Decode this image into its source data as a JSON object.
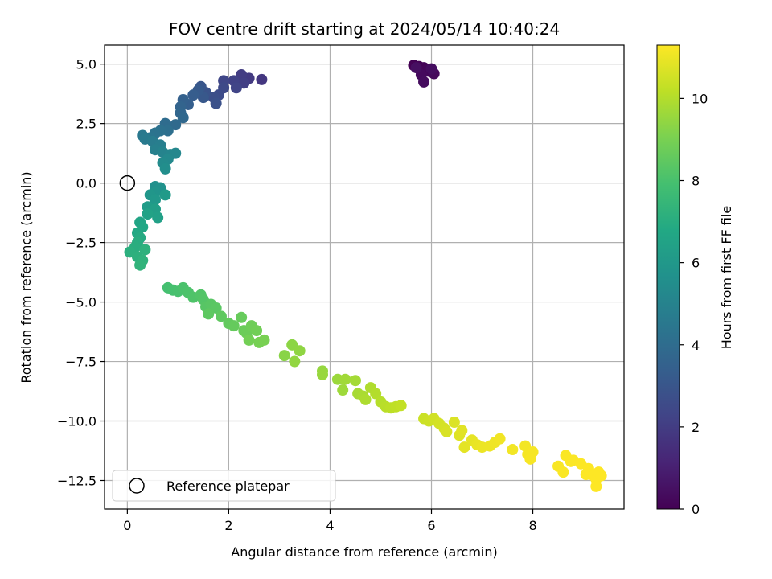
{
  "chart_data": {
    "type": "scatter",
    "title": "FOV centre drift starting at 2024/05/14 10:40:24",
    "xlabel": "Angular distance from reference (arcmin)",
    "ylabel": "Rotation from reference (arcmin)",
    "xlim": [
      -0.45,
      9.8
    ],
    "ylim": [
      -13.7,
      5.8
    ],
    "xticks": [
      0,
      2,
      4,
      6,
      8
    ],
    "xtick_labels": [
      "0",
      "2",
      "4",
      "6",
      "8"
    ],
    "yticks": [
      5.0,
      2.5,
      0.0,
      -2.5,
      -5.0,
      -7.5,
      -10.0,
      -12.5
    ],
    "ytick_labels": [
      "5.0",
      "2.5",
      "0.0",
      "−2.5",
      "−5.0",
      "−7.5",
      "−10.0",
      "−12.5"
    ],
    "grid": true,
    "legend": {
      "position": "lower-left",
      "entries": [
        "Reference platepar"
      ]
    },
    "reference_point": {
      "x": 0,
      "y": 0
    },
    "colorbar": {
      "label": "Hours from first FF file",
      "range": [
        0,
        11.3
      ],
      "ticks": [
        0,
        2,
        4,
        6,
        8,
        10
      ],
      "tick_labels": [
        "0",
        "2",
        "4",
        "6",
        "8",
        "10"
      ],
      "colormap": "viridis"
    },
    "points": [
      [
        5.65,
        4.95,
        0.0
      ],
      [
        5.75,
        4.9,
        0.05
      ],
      [
        5.85,
        4.85,
        0.1
      ],
      [
        5.9,
        4.75,
        0.15
      ],
      [
        5.95,
        4.7,
        0.2
      ],
      [
        6.05,
        4.6,
        0.25
      ],
      [
        5.8,
        4.55,
        0.3
      ],
      [
        5.85,
        4.25,
        0.35
      ],
      [
        6.0,
        4.8,
        0.4
      ],
      [
        5.7,
        4.85,
        0.45
      ],
      [
        2.65,
        4.35,
        1.8
      ],
      [
        2.4,
        4.4,
        1.9
      ],
      [
        2.25,
        4.55,
        2.0
      ],
      [
        2.3,
        4.2,
        2.1
      ],
      [
        2.1,
        4.3,
        2.2
      ],
      [
        2.15,
        4.0,
        2.3
      ],
      [
        1.9,
        4.3,
        2.4
      ],
      [
        1.9,
        4.0,
        2.5
      ],
      [
        1.8,
        3.7,
        2.6
      ],
      [
        1.7,
        3.6,
        2.7
      ],
      [
        1.75,
        3.35,
        2.8
      ],
      [
        1.55,
        3.8,
        2.9
      ],
      [
        1.45,
        4.05,
        3.0
      ],
      [
        1.5,
        3.6,
        3.1
      ],
      [
        1.4,
        3.9,
        3.2
      ],
      [
        1.3,
        3.7,
        3.3
      ],
      [
        1.2,
        3.3,
        3.4
      ],
      [
        1.1,
        3.5,
        3.5
      ],
      [
        1.05,
        3.2,
        3.6
      ],
      [
        1.05,
        2.95,
        3.7
      ],
      [
        1.1,
        2.75,
        3.8
      ],
      [
        0.95,
        2.45,
        3.9
      ],
      [
        0.75,
        2.5,
        4.0
      ],
      [
        0.8,
        2.2,
        4.1
      ],
      [
        0.65,
        2.2,
        4.2
      ],
      [
        0.55,
        2.1,
        4.3
      ],
      [
        0.45,
        1.9,
        4.4
      ],
      [
        0.3,
        2.0,
        4.5
      ],
      [
        0.35,
        1.85,
        4.6
      ],
      [
        0.5,
        1.75,
        4.7
      ],
      [
        0.65,
        1.6,
        4.8
      ],
      [
        0.55,
        1.4,
        4.9
      ],
      [
        0.7,
        1.3,
        5.0
      ],
      [
        0.85,
        1.2,
        5.1
      ],
      [
        0.95,
        1.25,
        5.2
      ],
      [
        0.8,
        1.0,
        5.3
      ],
      [
        0.7,
        0.85,
        5.4
      ],
      [
        0.75,
        0.6,
        5.5
      ],
      [
        0.55,
        -0.15,
        5.6
      ],
      [
        0.65,
        -0.2,
        5.7
      ],
      [
        0.55,
        -0.4,
        5.8
      ],
      [
        0.45,
        -0.5,
        5.9
      ],
      [
        0.55,
        -0.7,
        6.0
      ],
      [
        0.75,
        -0.5,
        6.1
      ],
      [
        0.4,
        -1.0,
        6.2
      ],
      [
        0.55,
        -1.1,
        6.3
      ],
      [
        0.6,
        -1.45,
        6.4
      ],
      [
        0.4,
        -1.3,
        6.5
      ],
      [
        0.25,
        -1.65,
        6.6
      ],
      [
        0.3,
        -1.85,
        6.7
      ],
      [
        0.2,
        -2.1,
        6.8
      ],
      [
        0.25,
        -2.3,
        6.9
      ],
      [
        0.2,
        -2.5,
        7.0
      ],
      [
        0.15,
        -2.7,
        7.05
      ],
      [
        0.05,
        -2.9,
        7.1
      ],
      [
        0.2,
        -3.1,
        7.15
      ],
      [
        0.35,
        -2.8,
        7.2
      ],
      [
        0.3,
        -3.25,
        7.25
      ],
      [
        0.25,
        -3.45,
        7.3
      ],
      [
        0.8,
        -4.4,
        7.9
      ],
      [
        0.9,
        -4.5,
        7.95
      ],
      [
        1.0,
        -4.55,
        8.0
      ],
      [
        1.1,
        -4.4,
        8.05
      ],
      [
        1.2,
        -4.6,
        8.1
      ],
      [
        1.3,
        -4.8,
        8.15
      ],
      [
        1.45,
        -4.7,
        8.2
      ],
      [
        1.5,
        -4.9,
        8.25
      ],
      [
        1.55,
        -5.2,
        8.3
      ],
      [
        1.65,
        -5.1,
        8.35
      ],
      [
        1.75,
        -5.25,
        8.4
      ],
      [
        1.6,
        -5.5,
        8.45
      ],
      [
        1.85,
        -5.6,
        8.5
      ],
      [
        2.0,
        -5.9,
        8.55
      ],
      [
        2.1,
        -6.0,
        8.6
      ],
      [
        2.25,
        -5.65,
        8.65
      ],
      [
        2.3,
        -6.2,
        8.7
      ],
      [
        2.35,
        -6.3,
        8.75
      ],
      [
        2.45,
        -6.0,
        8.8
      ],
      [
        2.55,
        -6.2,
        8.85
      ],
      [
        2.4,
        -6.6,
        8.9
      ],
      [
        2.6,
        -6.7,
        8.95
      ],
      [
        2.7,
        -6.6,
        9.0
      ],
      [
        3.1,
        -7.25,
        9.3
      ],
      [
        3.25,
        -6.8,
        9.35
      ],
      [
        3.4,
        -7.05,
        9.4
      ],
      [
        3.3,
        -7.5,
        9.45
      ],
      [
        3.85,
        -7.9,
        9.5
      ],
      [
        3.85,
        -8.05,
        9.55
      ],
      [
        4.15,
        -8.25,
        9.6
      ],
      [
        4.25,
        -8.7,
        9.65
      ],
      [
        4.3,
        -8.25,
        9.7
      ],
      [
        4.5,
        -8.3,
        9.75
      ],
      [
        4.55,
        -8.85,
        9.8
      ],
      [
        4.65,
        -8.95,
        9.85
      ],
      [
        4.7,
        -9.1,
        9.9
      ],
      [
        4.8,
        -8.6,
        9.95
      ],
      [
        4.9,
        -8.85,
        10.0
      ],
      [
        5.0,
        -9.2,
        10.05
      ],
      [
        5.1,
        -9.4,
        10.1
      ],
      [
        5.2,
        -9.45,
        10.15
      ],
      [
        5.3,
        -9.4,
        10.2
      ],
      [
        5.4,
        -9.35,
        10.25
      ],
      [
        5.85,
        -9.9,
        10.4
      ],
      [
        5.95,
        -10.0,
        10.45
      ],
      [
        6.05,
        -9.9,
        10.5
      ],
      [
        6.15,
        -10.1,
        10.55
      ],
      [
        6.25,
        -10.3,
        10.6
      ],
      [
        6.3,
        -10.45,
        10.65
      ],
      [
        6.45,
        -10.05,
        10.7
      ],
      [
        6.55,
        -10.6,
        10.75
      ],
      [
        6.6,
        -10.4,
        10.8
      ],
      [
        6.65,
        -11.1,
        10.85
      ],
      [
        6.8,
        -10.8,
        10.9
      ],
      [
        6.9,
        -11.0,
        10.95
      ],
      [
        7.0,
        -11.1,
        11.0
      ],
      [
        7.15,
        -11.05,
        11.02
      ],
      [
        7.25,
        -10.9,
        11.05
      ],
      [
        7.35,
        -10.75,
        11.08
      ],
      [
        7.6,
        -11.2,
        11.1
      ],
      [
        7.85,
        -11.05,
        11.12
      ],
      [
        7.9,
        -11.4,
        11.15
      ],
      [
        8.0,
        -11.3,
        11.18
      ],
      [
        7.95,
        -11.6,
        11.2
      ],
      [
        8.5,
        -11.9,
        11.22
      ],
      [
        8.6,
        -12.15,
        11.24
      ],
      [
        8.65,
        -11.45,
        11.25
      ],
      [
        8.75,
        -11.7,
        11.26
      ],
      [
        8.8,
        -11.65,
        11.27
      ],
      [
        8.95,
        -11.8,
        11.28
      ],
      [
        9.05,
        -12.25,
        11.29
      ],
      [
        9.1,
        -12.0,
        11.3
      ],
      [
        9.2,
        -12.3,
        11.3
      ],
      [
        9.25,
        -12.45,
        11.3
      ],
      [
        9.3,
        -12.15,
        11.3
      ],
      [
        9.35,
        -12.3,
        11.3
      ],
      [
        9.25,
        -12.75,
        11.3
      ]
    ]
  }
}
